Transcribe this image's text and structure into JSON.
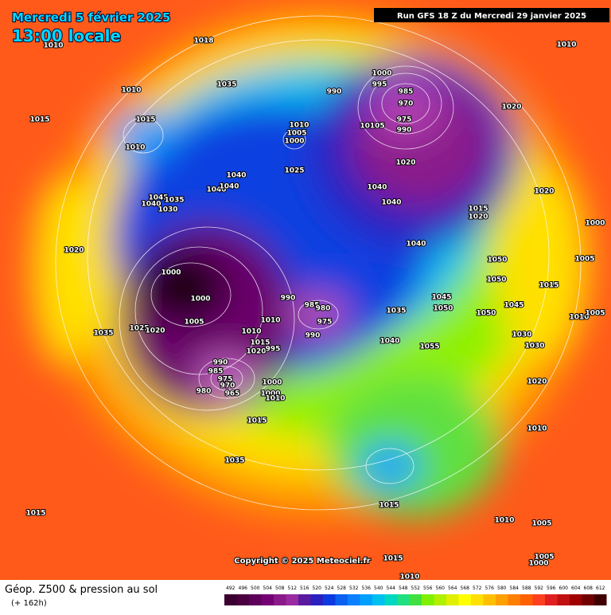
{
  "header": {
    "date": "Mercredi 5 février 2025",
    "time": "13:00 locale",
    "run": "Run GFS 18 Z du Mercredi 29 janvier 2025"
  },
  "map": {
    "copyright": "Copyright © 2025 Meteociel.fr",
    "pressure_labels": [
      "1010",
      "1018",
      "1010",
      "1035",
      "1010",
      "1015",
      "1015",
      "1010",
      "990",
      "1000",
      "995",
      "985",
      "970",
      "975",
      "990",
      "10105",
      "1010",
      "1005",
      "1000",
      "1020",
      "1025",
      "1020",
      "1040",
      "1040",
      "1040",
      "1045",
      "1035",
      "1040",
      "1030",
      "1040",
      "1040",
      "1015",
      "1020",
      "1020",
      "1000",
      "1020",
      "1040",
      "1050",
      "1005",
      "1050",
      "1015",
      "1000",
      "1000",
      "990",
      "985",
      "1045",
      "1050",
      "1045",
      "1010",
      "1005",
      "980",
      "1010",
      "1005",
      "975",
      "1035",
      "1025",
      "1020",
      "1035",
      "1050",
      "990",
      "1010",
      "1030",
      "1040",
      "1055",
      "1030",
      "1015",
      "1020",
      "995",
      "990",
      "985",
      "975",
      "970",
      "965",
      "980",
      "1000",
      "1000",
      "1010",
      "1020",
      "1010",
      "1015",
      "1035",
      "1015",
      "1015",
      "1010",
      "1005",
      "1015",
      "1005",
      "1000",
      "1010"
    ]
  },
  "footer": {
    "title": "Géop. Z500 & pression au sol",
    "lead": "(+ 162h)"
  },
  "legend": {
    "ticks": [
      492,
      496,
      500,
      504,
      508,
      512,
      516,
      520,
      524,
      528,
      532,
      536,
      540,
      544,
      548,
      552,
      556,
      560,
      564,
      568,
      572,
      576,
      580,
      584,
      588,
      592,
      596,
      600,
      604,
      608,
      612
    ],
    "colors": [
      "#3a0030",
      "#4a0040",
      "#5e005a",
      "#750075",
      "#8a1a8a",
      "#9a2aa0",
      "#5a1aa0",
      "#2a20c0",
      "#0a3ae0",
      "#0a60f0",
      "#0a80ff",
      "#00a0ff",
      "#00c0f0",
      "#00d8c0",
      "#20e080",
      "#40e040",
      "#80f000",
      "#b0f000",
      "#e0f000",
      "#ffff00",
      "#ffe000",
      "#ffc000",
      "#ffa000",
      "#ff8000",
      "#ff6000",
      "#ff4020",
      "#e02020",
      "#c01010",
      "#a00000",
      "#700000",
      "#400000"
    ]
  }
}
